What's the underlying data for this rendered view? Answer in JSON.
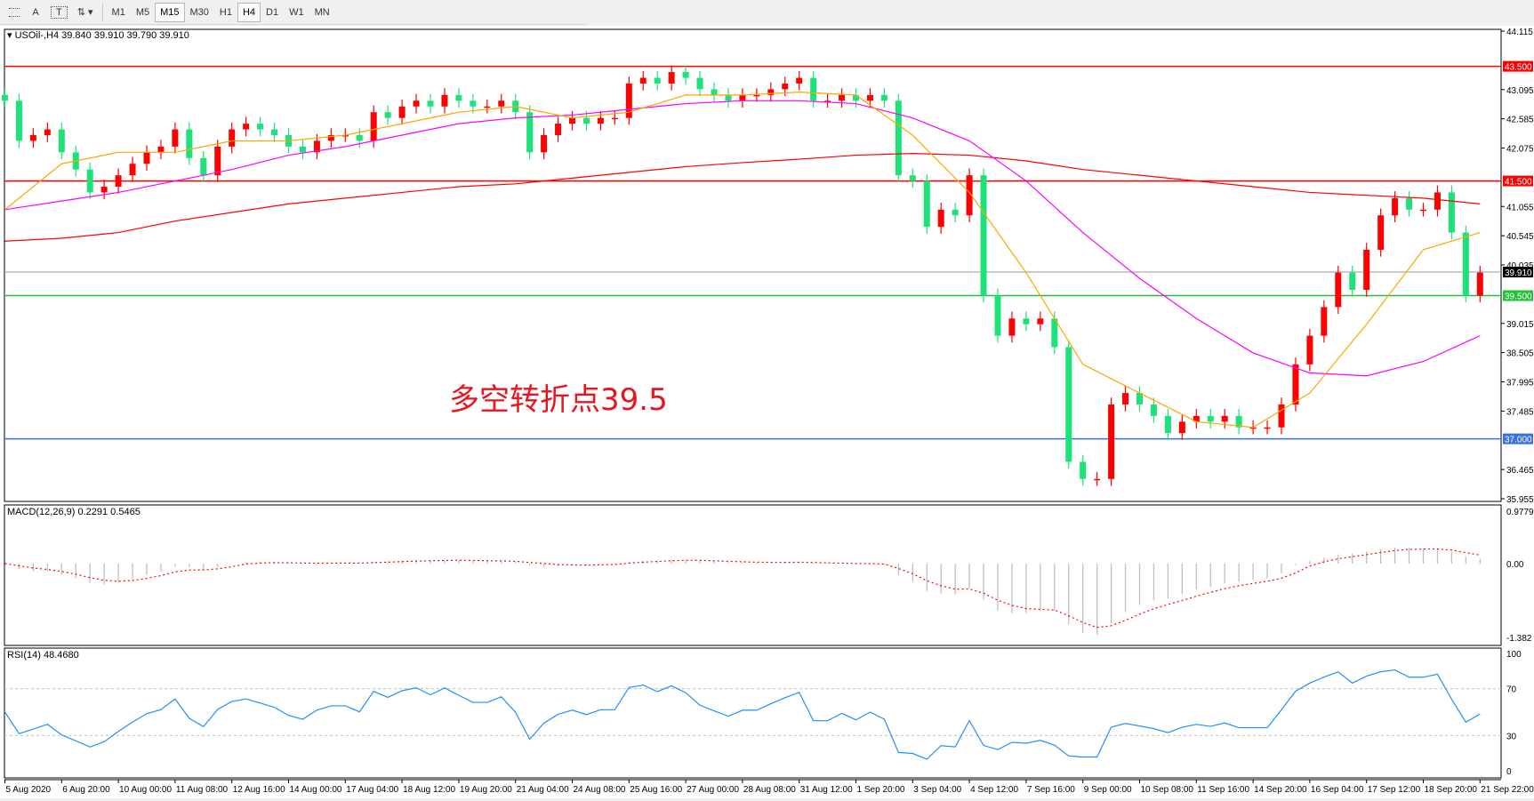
{
  "toolbar": {
    "tools": [
      {
        "name": "grid-icon",
        "label": ""
      },
      {
        "name": "text-tool",
        "label": "A"
      },
      {
        "name": "text-label-tool",
        "label": "T"
      },
      {
        "name": "arrows-tool",
        "label": "⇅ ▾"
      }
    ],
    "timeframes": [
      "M1",
      "M5",
      "M15",
      "M30",
      "H1",
      "H4",
      "D1",
      "W1",
      "MN"
    ],
    "active": [
      "M15",
      "H4"
    ]
  },
  "main": {
    "symbol_label": "USOil-,H4  39.840 39.910 39.790 39.910",
    "annotation": "多空转折点39.5"
  },
  "macd": {
    "label": "MACD(12,26,9) 0.2291 0.5465",
    "scale": [
      "0.9779",
      "0.00",
      "-1.382"
    ]
  },
  "rsi": {
    "label": "RSI(14) 48.4680",
    "scale": [
      "100",
      "70",
      "30",
      "0"
    ]
  },
  "colors": {
    "bull": "#ff0000",
    "bear": "#1de27a",
    "ma_fast": "#ffa500",
    "ma_mid": "#ff00ff",
    "ma_slow": "#ff0000",
    "rsi": "#1e90ff",
    "macd_signal": "#ff0000",
    "macd_hist": "#c0c0c0"
  },
  "chart_data": {
    "type": "candlestick",
    "ylim": [
      35.955,
      44.115
    ],
    "price_ticks": [
      "44.115",
      "43.095",
      "42.585",
      "42.075",
      "41.055",
      "40.545",
      "40.035",
      "39.015",
      "38.505",
      "37.995",
      "37.485",
      "36.465",
      "35.955"
    ],
    "levels": [
      {
        "price": 43.5,
        "label": "43.500",
        "color": "#ff0000"
      },
      {
        "price": 41.5,
        "label": "41.500",
        "color": "#ff0000"
      },
      {
        "price": 39.5,
        "label": "39.500",
        "color": "#22c03a"
      },
      {
        "price": 37.0,
        "label": "37.000",
        "color": "#3a6fe0"
      },
      {
        "price": 39.91,
        "label": "39.910",
        "color": "#000000",
        "current": true
      }
    ],
    "closes": [
      42.9,
      42.2,
      42.3,
      42.4,
      42.0,
      41.7,
      41.3,
      41.4,
      41.6,
      41.8,
      42.0,
      42.1,
      42.4,
      41.9,
      41.6,
      42.1,
      42.4,
      42.5,
      42.4,
      42.3,
      42.1,
      42.0,
      42.2,
      42.3,
      42.3,
      42.2,
      42.7,
      42.6,
      42.8,
      42.9,
      42.8,
      43.0,
      42.9,
      42.8,
      42.8,
      42.9,
      42.7,
      42.0,
      42.3,
      42.5,
      42.6,
      42.5,
      42.6,
      42.6,
      43.2,
      43.3,
      43.2,
      43.4,
      43.3,
      43.1,
      43.0,
      42.9,
      43.0,
      43.0,
      43.1,
      43.2,
      43.3,
      42.9,
      42.9,
      43.0,
      42.9,
      43.0,
      42.9,
      41.6,
      41.5,
      40.7,
      41.0,
      40.9,
      41.6,
      39.5,
      38.8,
      39.1,
      39.0,
      39.1,
      38.6,
      36.6,
      36.3,
      36.3,
      37.6,
      37.8,
      37.6,
      37.4,
      37.1,
      37.3,
      37.4,
      37.3,
      37.4,
      37.2,
      37.2,
      37.2,
      37.6,
      38.3,
      38.8,
      39.3,
      39.9,
      39.6,
      40.3,
      40.9,
      41.2,
      41.0,
      41.0,
      41.3,
      40.6,
      39.5,
      39.9
    ],
    "ma_fast": [
      41.0,
      41.8,
      42.0,
      42.0,
      42.2,
      42.2,
      42.3,
      42.5,
      42.7,
      42.8,
      42.6,
      42.7,
      43.0,
      43.0,
      43.05,
      43.0,
      42.3,
      41.3,
      39.9,
      38.3,
      37.8,
      37.3,
      37.2,
      37.8,
      39.0,
      40.3,
      40.6
    ],
    "ma_mid": [
      41.0,
      41.15,
      41.3,
      41.5,
      41.7,
      41.95,
      42.1,
      42.3,
      42.5,
      42.6,
      42.65,
      42.75,
      42.85,
      42.9,
      42.9,
      42.85,
      42.6,
      42.2,
      41.5,
      40.6,
      39.8,
      39.1,
      38.5,
      38.15,
      38.1,
      38.35,
      38.8
    ],
    "ma_slow": [
      40.45,
      40.5,
      40.6,
      40.8,
      40.95,
      41.1,
      41.2,
      41.3,
      41.4,
      41.45,
      41.55,
      41.65,
      41.75,
      41.82,
      41.88,
      41.95,
      41.98,
      41.95,
      41.85,
      41.7,
      41.6,
      41.5,
      41.4,
      41.3,
      41.25,
      41.2,
      41.1
    ],
    "time_labels": [
      "5 Aug 2020",
      "6 Aug 20:00",
      "10 Aug 00:00",
      "11 Aug 08:00",
      "12 Aug 16:00",
      "14 Aug 00:00",
      "17 Aug 04:00",
      "18 Aug 12:00",
      "19 Aug 20:00",
      "21 Aug 04:00",
      "24 Aug 08:00",
      "25 Aug 16:00",
      "27 Aug 00:00",
      "28 Aug 08:00",
      "31 Aug 12:00",
      "1 Sep 20:00",
      "3 Sep 04:00",
      "4 Sep 12:00",
      "7 Sep 16:00",
      "9 Sep 00:00",
      "10 Sep 08:00",
      "11 Sep 16:00",
      "14 Sep 20:00",
      "16 Sep 04:00",
      "17 Sep 12:00",
      "18 Sep 20:00",
      "21 Sep 22:00"
    ]
  }
}
